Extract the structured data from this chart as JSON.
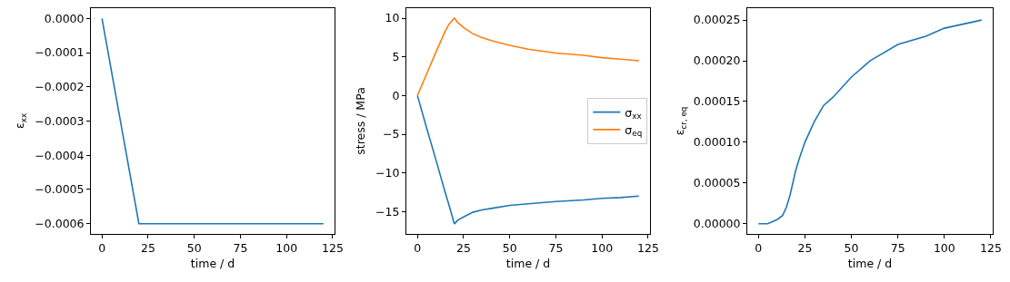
{
  "chart_data": [
    {
      "type": "line",
      "xlabel": "time / d",
      "ylabel": "ε$_{xx}$",
      "grid": false,
      "legend": false,
      "x": [
        0,
        20,
        120
      ],
      "series": [
        {
          "color": "#1f77b4",
          "values": [
            0,
            -0.0006,
            -0.0006
          ]
        }
      ],
      "xlim": [
        -6,
        126
      ],
      "xticks": [
        0,
        25,
        50,
        75,
        100,
        125
      ],
      "ylim": [
        -0.00063,
        3e-05
      ],
      "yticks": [
        {
          "value": 0,
          "label": "0.0000"
        },
        {
          "value": -0.0001,
          "label": "−0.0001"
        },
        {
          "value": -0.0002,
          "label": "−0.0002"
        },
        {
          "value": -0.0003,
          "label": "−0.0003"
        },
        {
          "value": -0.0004,
          "label": "−0.0004"
        },
        {
          "value": -0.0005,
          "label": "−0.0005"
        },
        {
          "value": -0.0006,
          "label": "−0.0006"
        }
      ]
    },
    {
      "type": "line",
      "xlabel": "time / d",
      "ylabel": "stress / MPa",
      "grid": false,
      "legend": "right",
      "x": [
        0,
        5,
        10,
        15,
        17,
        20,
        22,
        25,
        30,
        35,
        40,
        50,
        60,
        75,
        90,
        100,
        110,
        120
      ],
      "series": [
        {
          "name": "σ$_{xx}$",
          "color": "#1f77b4",
          "values": [
            0,
            -4.2,
            -8.3,
            -12.5,
            -14.1,
            -16.6,
            -16.1,
            -15.7,
            -15.1,
            -14.8,
            -14.6,
            -14.2,
            -14.0,
            -13.7,
            -13.5,
            -13.3,
            -13.2,
            -13.0
          ]
        },
        {
          "name": "σ$_{eq}$",
          "color": "#ff7f0e",
          "values": [
            0,
            2.8,
            5.6,
            8.3,
            9.2,
            10,
            9.4,
            8.8,
            8.0,
            7.5,
            7.1,
            6.5,
            6.0,
            5.5,
            5.2,
            4.9,
            4.7,
            4.5
          ]
        }
      ],
      "xlim": [
        -6,
        126
      ],
      "xticks": [
        0,
        25,
        50,
        75,
        100,
        125
      ],
      "ylim": [
        -17.9,
        11.3
      ],
      "yticks": [
        {
          "value": -15,
          "label": "−15"
        },
        {
          "value": -10,
          "label": "−10"
        },
        {
          "value": -5,
          "label": "−5"
        },
        0,
        5,
        10
      ]
    },
    {
      "type": "line",
      "xlabel": "time / d",
      "ylabel": "ε$_{cr, eq}$",
      "grid": false,
      "legend": false,
      "x": [
        0,
        5,
        10,
        13,
        15,
        17,
        19,
        20,
        22,
        25,
        30,
        35,
        40,
        50,
        60,
        75,
        90,
        100,
        110,
        120
      ],
      "series": [
        {
          "color": "#1f77b4",
          "values": [
            0,
            0,
            5e-06,
            1e-05,
            2e-05,
            3.5e-05,
            5.5e-05,
            6.5e-05,
            8e-05,
            0.0001,
            0.000125,
            0.000145,
            0.000155,
            0.00018,
            0.0002,
            0.00022,
            0.00023,
            0.00024,
            0.000245,
            0.00025
          ]
        }
      ],
      "xlim": [
        -6,
        126
      ],
      "xticks": [
        0,
        25,
        50,
        75,
        100,
        125
      ],
      "ylim": [
        -1.26e-05,
        0.0002646
      ],
      "yticks": [
        {
          "value": 0,
          "label": "0.00000"
        },
        {
          "value": 5e-05,
          "label": "0.00005"
        },
        {
          "value": 0.0001,
          "label": "0.00010"
        },
        {
          "value": 0.00015,
          "label": "0.00015"
        },
        {
          "value": 0.0002,
          "label": "0.00020"
        },
        {
          "value": 0.00025,
          "label": "0.00025"
        }
      ]
    }
  ]
}
